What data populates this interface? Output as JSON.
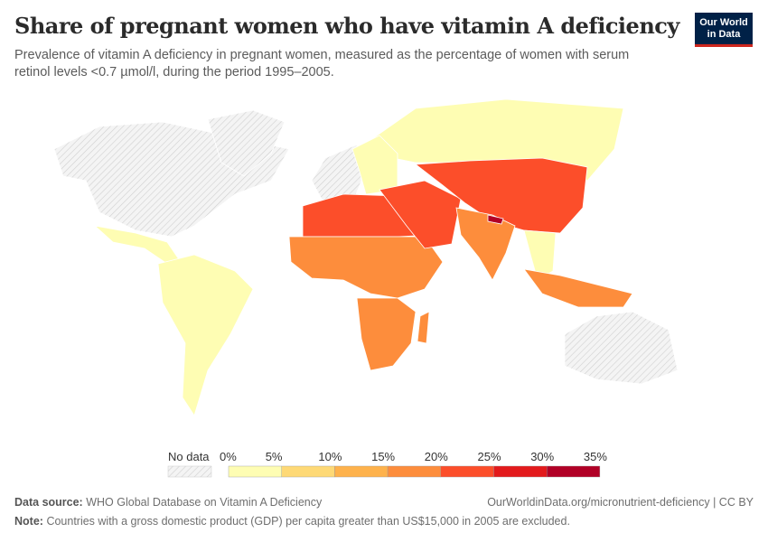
{
  "header": {
    "title": "Share of pregnant women who have vitamin A deficiency",
    "subtitle": "Prevalence of vitamin A deficiency in pregnant women, measured as the percentage of women with serum retinol levels <0.7 µmol/l, during the period 1995–2005.",
    "logo": "Our World in Data"
  },
  "chart_data": {
    "type": "choropleth-map",
    "title": "Share of pregnant women who have vitamin A deficiency",
    "legend": {
      "no_data_label": "No data",
      "ticks": [
        "0%",
        "5%",
        "10%",
        "15%",
        "20%",
        "25%",
        "30%",
        "35%"
      ],
      "bins": [
        {
          "min": 0,
          "max": 5,
          "color": "#fefdb3"
        },
        {
          "min": 5,
          "max": 10,
          "color": "#fed976"
        },
        {
          "min": 10,
          "max": 15,
          "color": "#feb24c"
        },
        {
          "min": 15,
          "max": 20,
          "color": "#fd8d3c"
        },
        {
          "min": 20,
          "max": 25,
          "color": "#fc4e2a"
        },
        {
          "min": 25,
          "max": 30,
          "color": "#e31a1c"
        },
        {
          "min": 30,
          "max": 35,
          "color": "#b10026"
        }
      ]
    },
    "regions": [
      {
        "name": "North America",
        "bin": "no data"
      },
      {
        "name": "Greenland",
        "bin": "no data"
      },
      {
        "name": "Western Europe",
        "bin": "no data"
      },
      {
        "name": "Australia",
        "bin": "no data"
      },
      {
        "name": "Mexico & Central America",
        "bin": "0-5%"
      },
      {
        "name": "South America",
        "bin": "0-5%"
      },
      {
        "name": "Russia",
        "bin": "0-5%"
      },
      {
        "name": "Eastern Europe",
        "bin": "0-5%"
      },
      {
        "name": "North Africa",
        "bin": "20-25%"
      },
      {
        "name": "West & Central Africa",
        "bin": "15-20%"
      },
      {
        "name": "Southern Africa",
        "bin": "15-20%"
      },
      {
        "name": "Middle East",
        "bin": "20-25%"
      },
      {
        "name": "Central Asia & China",
        "bin": "20-25%"
      },
      {
        "name": "South Asia",
        "bin": "15-20%"
      },
      {
        "name": "Nepal",
        "bin": "30-35%"
      },
      {
        "name": "Southeast Asia",
        "bin": "0-5%"
      },
      {
        "name": "Indonesia",
        "bin": "15-20%"
      },
      {
        "name": "Madagascar",
        "bin": "15-20%"
      }
    ]
  },
  "footer": {
    "source_label": "Data source:",
    "source": "WHO Global Database on Vitamin A Deficiency",
    "url": "OurWorldinData.org/micronutrient-deficiency | CC BY",
    "note_label": "Note:",
    "note": "Countries with a gross domestic product (GDP) per capita greater than US$15,000 in 2005 are excluded."
  }
}
